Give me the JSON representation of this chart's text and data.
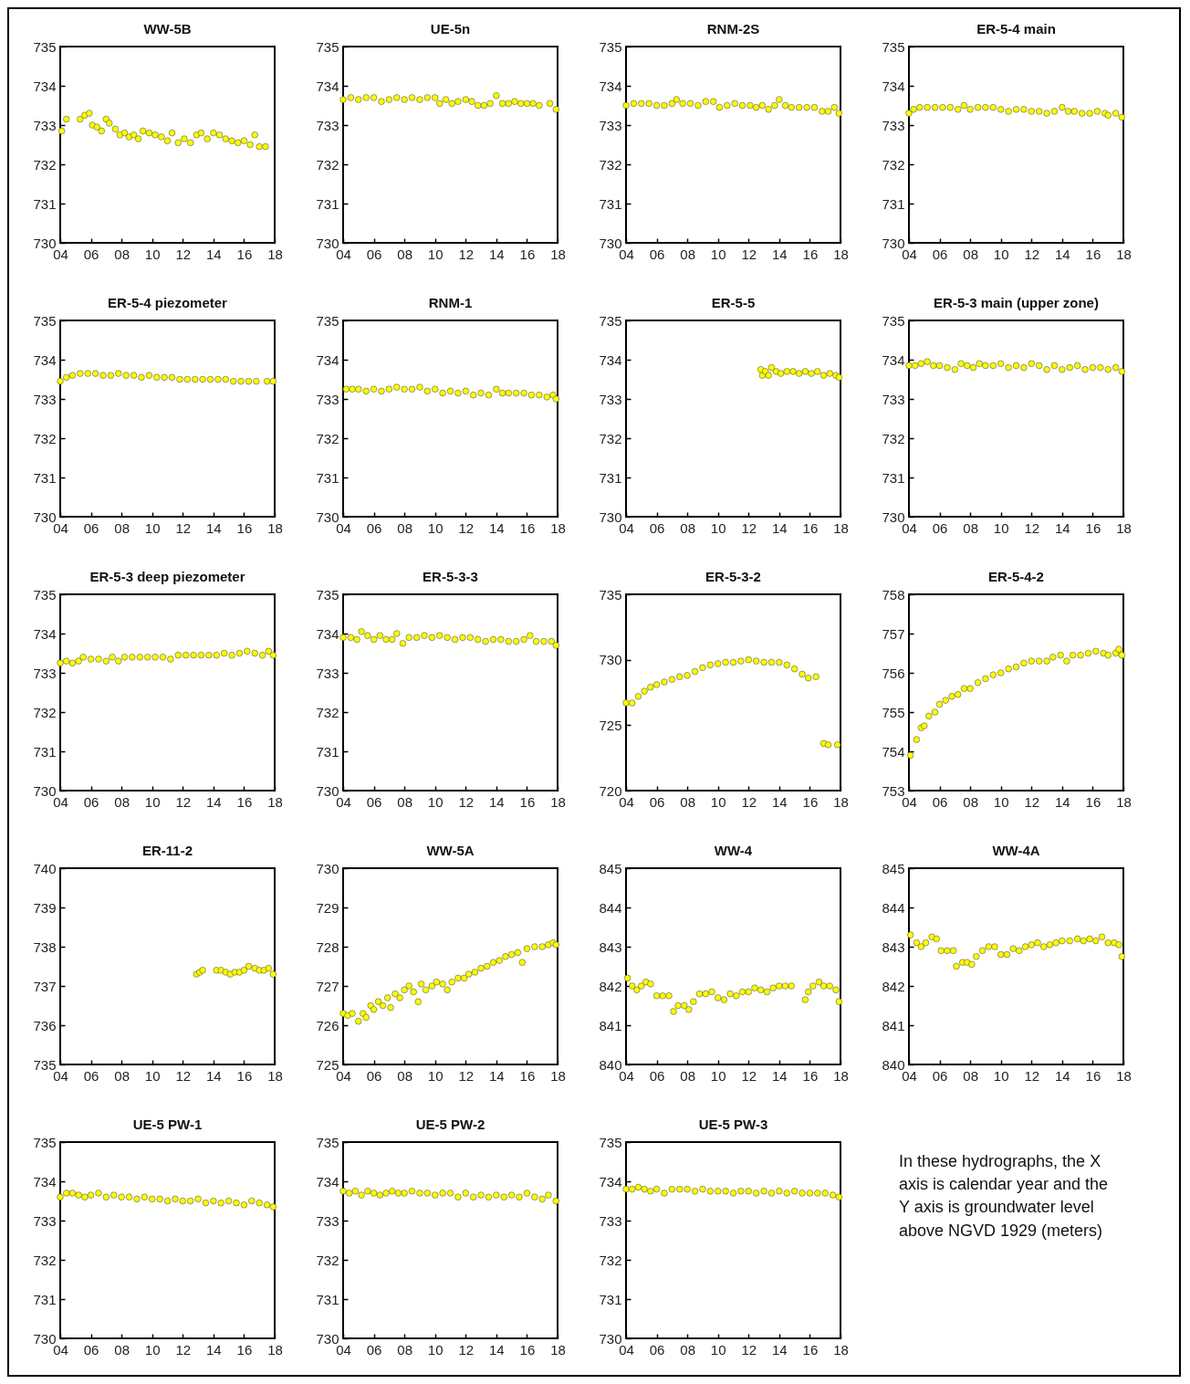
{
  "chart_data": [
    {
      "type": "scatter",
      "title": "WW-5B",
      "marker": "circle",
      "color": "#ffff00",
      "xlim": [
        2004,
        2018
      ],
      "xticks": [
        {
          "value": 2004,
          "label": "04"
        },
        {
          "value": 2006,
          "label": "06"
        },
        {
          "value": 2008,
          "label": "08"
        },
        {
          "value": 2010,
          "label": "10"
        },
        {
          "value": 2012,
          "label": "12"
        },
        {
          "value": 2014,
          "label": "14"
        },
        {
          "value": 2016,
          "label": "16"
        },
        {
          "value": 2018,
          "label": "18"
        }
      ],
      "ylim": [
        730,
        735
      ],
      "yticks": [
        730,
        731,
        732,
        733,
        734,
        735
      ],
      "x": [
        2004.1,
        2004.4,
        2005.3,
        2005.6,
        2005.9,
        2006.1,
        2006.4,
        2006.7,
        2007.0,
        2007.2,
        2007.6,
        2007.9,
        2008.2,
        2008.5,
        2008.8,
        2009.1,
        2009.4,
        2009.8,
        2010.2,
        2010.6,
        2011.0,
        2011.3,
        2011.7,
        2012.1,
        2012.5,
        2012.9,
        2013.2,
        2013.6,
        2014.0,
        2014.4,
        2014.8,
        2015.2,
        2015.6,
        2016.0,
        2016.4,
        2016.7,
        2017.0,
        2017.4
      ],
      "values": [
        732.85,
        733.15,
        733.15,
        733.25,
        733.3,
        733.0,
        732.95,
        732.85,
        733.15,
        733.05,
        732.9,
        732.75,
        732.8,
        732.7,
        732.75,
        732.65,
        732.85,
        732.8,
        732.75,
        732.7,
        732.6,
        732.8,
        732.55,
        732.65,
        732.55,
        732.75,
        732.8,
        732.65,
        732.8,
        732.75,
        732.65,
        732.6,
        732.55,
        732.6,
        732.5,
        732.75,
        732.45,
        732.45
      ]
    },
    {
      "type": "scatter",
      "title": "UE-5n",
      "marker": "circle",
      "color": "#ffff00",
      "xlim": [
        2004,
        2018
      ],
      "xticks": [
        {
          "value": 2004,
          "label": "04"
        },
        {
          "value": 2006,
          "label": "06"
        },
        {
          "value": 2008,
          "label": "08"
        },
        {
          "value": 2010,
          "label": "10"
        },
        {
          "value": 2012,
          "label": "12"
        },
        {
          "value": 2014,
          "label": "14"
        },
        {
          "value": 2016,
          "label": "16"
        },
        {
          "value": 2018,
          "label": "18"
        }
      ],
      "ylim": [
        730,
        735
      ],
      "yticks": [
        730,
        731,
        732,
        733,
        734,
        735
      ],
      "x": [
        2004.0,
        2004.5,
        2005.0,
        2005.5,
        2006.0,
        2006.5,
        2007.0,
        2007.5,
        2008.0,
        2008.5,
        2009.0,
        2009.5,
        2010.0,
        2010.3,
        2010.7,
        2011.1,
        2011.5,
        2012.0,
        2012.4,
        2012.8,
        2013.2,
        2013.6,
        2014.0,
        2014.4,
        2014.8,
        2015.2,
        2015.6,
        2016.0,
        2016.4,
        2016.8,
        2017.5,
        2017.9
      ],
      "values": [
        733.65,
        733.7,
        733.65,
        733.7,
        733.7,
        733.6,
        733.65,
        733.7,
        733.65,
        733.7,
        733.65,
        733.7,
        733.7,
        733.55,
        733.65,
        733.55,
        733.6,
        733.65,
        733.6,
        733.5,
        733.5,
        733.55,
        733.75,
        733.55,
        733.55,
        733.6,
        733.55,
        733.55,
        733.55,
        733.5,
        733.55,
        733.4
      ]
    },
    {
      "type": "scatter",
      "title": "RNM-2S",
      "marker": "circle",
      "color": "#ffff00",
      "xlim": [
        2004,
        2018
      ],
      "xticks": [
        {
          "value": 2004,
          "label": "04"
        },
        {
          "value": 2006,
          "label": "06"
        },
        {
          "value": 2008,
          "label": "08"
        },
        {
          "value": 2010,
          "label": "10"
        },
        {
          "value": 2012,
          "label": "12"
        },
        {
          "value": 2014,
          "label": "14"
        },
        {
          "value": 2016,
          "label": "16"
        },
        {
          "value": 2018,
          "label": "18"
        }
      ],
      "ylim": [
        730,
        735
      ],
      "yticks": [
        730,
        731,
        732,
        733,
        734,
        735
      ],
      "x": [
        2004.0,
        2004.5,
        2005.0,
        2005.5,
        2006.0,
        2006.5,
        2007.0,
        2007.3,
        2007.7,
        2008.2,
        2008.7,
        2009.2,
        2009.7,
        2010.1,
        2010.6,
        2011.1,
        2011.6,
        2012.1,
        2012.5,
        2012.9,
        2013.3,
        2013.7,
        2014.0,
        2014.4,
        2014.8,
        2015.3,
        2015.8,
        2016.3,
        2016.8,
        2017.2,
        2017.6,
        2017.9
      ],
      "values": [
        733.5,
        733.55,
        733.55,
        733.55,
        733.5,
        733.5,
        733.55,
        733.65,
        733.55,
        733.55,
        733.5,
        733.6,
        733.6,
        733.45,
        733.5,
        733.55,
        733.5,
        733.5,
        733.45,
        733.5,
        733.4,
        733.5,
        733.65,
        733.5,
        733.45,
        733.45,
        733.45,
        733.45,
        733.35,
        733.35,
        733.45,
        733.3
      ]
    },
    {
      "type": "scatter",
      "title": "ER-5-4 main",
      "marker": "circle",
      "color": "#ffff00",
      "xlim": [
        2004,
        2018
      ],
      "xticks": [
        {
          "value": 2004,
          "label": "04"
        },
        {
          "value": 2006,
          "label": "06"
        },
        {
          "value": 2008,
          "label": "08"
        },
        {
          "value": 2010,
          "label": "10"
        },
        {
          "value": 2012,
          "label": "12"
        },
        {
          "value": 2014,
          "label": "14"
        },
        {
          "value": 2016,
          "label": "16"
        },
        {
          "value": 2018,
          "label": "18"
        }
      ],
      "ylim": [
        730,
        735
      ],
      "yticks": [
        730,
        731,
        732,
        733,
        734,
        735
      ],
      "x": [
        2004.0,
        2004.3,
        2004.7,
        2005.2,
        2005.7,
        2006.2,
        2006.7,
        2007.2,
        2007.6,
        2008.0,
        2008.5,
        2009.0,
        2009.5,
        2010.0,
        2010.5,
        2011.0,
        2011.5,
        2012.0,
        2012.5,
        2013.0,
        2013.5,
        2014.0,
        2014.4,
        2014.8,
        2015.3,
        2015.8,
        2016.3,
        2016.8,
        2017.0,
        2017.5,
        2017.9
      ],
      "values": [
        733.3,
        733.4,
        733.45,
        733.45,
        733.45,
        733.45,
        733.45,
        733.4,
        733.5,
        733.4,
        733.45,
        733.45,
        733.45,
        733.4,
        733.35,
        733.4,
        733.4,
        733.35,
        733.35,
        733.3,
        733.35,
        733.45,
        733.35,
        733.35,
        733.3,
        733.3,
        733.35,
        733.3,
        733.25,
        733.3,
        733.2
      ]
    },
    {
      "type": "scatter",
      "title": "ER-5-4 piezometer",
      "marker": "circle",
      "color": "#ffff00",
      "xlim": [
        2004,
        2018
      ],
      "xticks": [
        {
          "value": 2004,
          "label": "04"
        },
        {
          "value": 2006,
          "label": "06"
        },
        {
          "value": 2008,
          "label": "08"
        },
        {
          "value": 2010,
          "label": "10"
        },
        {
          "value": 2012,
          "label": "12"
        },
        {
          "value": 2014,
          "label": "14"
        },
        {
          "value": 2016,
          "label": "16"
        },
        {
          "value": 2018,
          "label": "18"
        }
      ],
      "ylim": [
        730,
        735
      ],
      "yticks": [
        730,
        731,
        732,
        733,
        734,
        735
      ],
      "x": [
        2004.0,
        2004.4,
        2004.8,
        2005.3,
        2005.8,
        2006.3,
        2006.8,
        2007.3,
        2007.8,
        2008.3,
        2008.8,
        2009.3,
        2009.8,
        2010.3,
        2010.8,
        2011.3,
        2011.8,
        2012.3,
        2012.8,
        2013.3,
        2013.8,
        2014.3,
        2014.8,
        2015.3,
        2015.8,
        2016.3,
        2016.8,
        2017.5,
        2017.9
      ],
      "values": [
        733.45,
        733.55,
        733.6,
        733.65,
        733.65,
        733.65,
        733.6,
        733.6,
        733.65,
        733.6,
        733.6,
        733.55,
        733.6,
        733.55,
        733.55,
        733.55,
        733.5,
        733.5,
        733.5,
        733.5,
        733.5,
        733.5,
        733.5,
        733.45,
        733.45,
        733.45,
        733.45,
        733.45,
        733.45
      ]
    },
    {
      "type": "scatter",
      "title": "RNM-1",
      "marker": "circle",
      "color": "#ffff00",
      "xlim": [
        2004,
        2018
      ],
      "xticks": [
        {
          "value": 2004,
          "label": "04"
        },
        {
          "value": 2006,
          "label": "06"
        },
        {
          "value": 2008,
          "label": "08"
        },
        {
          "value": 2010,
          "label": "10"
        },
        {
          "value": 2012,
          "label": "12"
        },
        {
          "value": 2014,
          "label": "14"
        },
        {
          "value": 2016,
          "label": "16"
        },
        {
          "value": 2018,
          "label": "18"
        }
      ],
      "ylim": [
        730,
        735
      ],
      "yticks": [
        730,
        731,
        732,
        733,
        734,
        735
      ],
      "x": [
        2004.2,
        2004.6,
        2005.0,
        2005.5,
        2006.0,
        2006.5,
        2007.0,
        2007.5,
        2008.0,
        2008.5,
        2009.0,
        2009.5,
        2010.0,
        2010.5,
        2011.0,
        2011.5,
        2012.0,
        2012.5,
        2013.0,
        2013.5,
        2014.0,
        2014.4,
        2014.8,
        2015.3,
        2015.8,
        2016.3,
        2016.8,
        2017.3,
        2017.7,
        2017.9
      ],
      "values": [
        733.25,
        733.25,
        733.25,
        733.2,
        733.25,
        733.2,
        733.25,
        733.3,
        733.25,
        733.25,
        733.3,
        733.2,
        733.25,
        733.15,
        733.2,
        733.15,
        733.2,
        733.1,
        733.15,
        733.1,
        733.25,
        733.15,
        733.15,
        733.15,
        733.15,
        733.1,
        733.1,
        733.05,
        733.1,
        733.0
      ]
    },
    {
      "type": "scatter",
      "title": "ER-5-5",
      "marker": "circle",
      "color": "#ffff00",
      "xlim": [
        2004,
        2018
      ],
      "xticks": [
        {
          "value": 2004,
          "label": "04"
        },
        {
          "value": 2006,
          "label": "06"
        },
        {
          "value": 2008,
          "label": "08"
        },
        {
          "value": 2010,
          "label": "10"
        },
        {
          "value": 2012,
          "label": "12"
        },
        {
          "value": 2014,
          "label": "14"
        },
        {
          "value": 2016,
          "label": "16"
        },
        {
          "value": 2018,
          "label": "18"
        }
      ],
      "ylim": [
        730,
        735
      ],
      "yticks": [
        730,
        731,
        732,
        733,
        734,
        735
      ],
      "x": [
        2012.8,
        2012.9,
        2013.1,
        2013.3,
        2013.5,
        2013.8,
        2014.1,
        2014.5,
        2014.9,
        2015.3,
        2015.7,
        2016.1,
        2016.5,
        2016.9,
        2017.3,
        2017.7,
        2017.9
      ],
      "values": [
        733.75,
        733.6,
        733.7,
        733.6,
        733.8,
        733.7,
        733.65,
        733.7,
        733.7,
        733.65,
        733.7,
        733.65,
        733.7,
        733.6,
        733.65,
        733.6,
        733.55
      ]
    },
    {
      "type": "scatter",
      "title": "ER-5-3 main (upper zone)",
      "marker": "circle",
      "color": "#ffff00",
      "xlim": [
        2004,
        2018
      ],
      "xticks": [
        {
          "value": 2004,
          "label": "04"
        },
        {
          "value": 2006,
          "label": "06"
        },
        {
          "value": 2008,
          "label": "08"
        },
        {
          "value": 2010,
          "label": "10"
        },
        {
          "value": 2012,
          "label": "12"
        },
        {
          "value": 2014,
          "label": "14"
        },
        {
          "value": 2016,
          "label": "16"
        },
        {
          "value": 2018,
          "label": "18"
        }
      ],
      "ylim": [
        730,
        735
      ],
      "yticks": [
        730,
        731,
        732,
        733,
        734,
        735
      ],
      "x": [
        2004.0,
        2004.4,
        2004.8,
        2005.2,
        2005.6,
        2006.0,
        2006.5,
        2007.0,
        2007.4,
        2007.8,
        2008.2,
        2008.6,
        2009.0,
        2009.5,
        2010.0,
        2010.5,
        2011.0,
        2011.5,
        2012.0,
        2012.5,
        2013.0,
        2013.5,
        2014.0,
        2014.5,
        2015.0,
        2015.5,
        2016.0,
        2016.5,
        2017.0,
        2017.5,
        2017.9
      ],
      "values": [
        733.85,
        733.85,
        733.9,
        733.95,
        733.85,
        733.85,
        733.8,
        733.75,
        733.9,
        733.85,
        733.8,
        733.9,
        733.85,
        733.85,
        733.9,
        733.8,
        733.85,
        733.8,
        733.9,
        733.85,
        733.75,
        733.85,
        733.75,
        733.8,
        733.85,
        733.75,
        733.8,
        733.8,
        733.75,
        733.8,
        733.7
      ]
    },
    {
      "type": "scatter",
      "title": "ER-5-3 deep piezometer",
      "marker": "circle",
      "color": "#ffff00",
      "xlim": [
        2004,
        2018
      ],
      "xticks": [
        {
          "value": 2004,
          "label": "04"
        },
        {
          "value": 2006,
          "label": "06"
        },
        {
          "value": 2008,
          "label": "08"
        },
        {
          "value": 2010,
          "label": "10"
        },
        {
          "value": 2012,
          "label": "12"
        },
        {
          "value": 2014,
          "label": "14"
        },
        {
          "value": 2016,
          "label": "16"
        },
        {
          "value": 2018,
          "label": "18"
        }
      ],
      "ylim": [
        730,
        735
      ],
      "yticks": [
        730,
        731,
        732,
        733,
        734,
        735
      ],
      "x": [
        2004.0,
        2004.4,
        2004.8,
        2005.2,
        2005.5,
        2006.0,
        2006.5,
        2007.0,
        2007.4,
        2007.8,
        2008.2,
        2008.7,
        2009.2,
        2009.7,
        2010.2,
        2010.7,
        2011.2,
        2011.7,
        2012.2,
        2012.7,
        2013.2,
        2013.7,
        2014.2,
        2014.7,
        2015.2,
        2015.7,
        2016.2,
        2016.7,
        2017.2,
        2017.6,
        2017.9
      ],
      "values": [
        733.25,
        733.3,
        733.25,
        733.3,
        733.4,
        733.35,
        733.35,
        733.3,
        733.4,
        733.3,
        733.4,
        733.4,
        733.4,
        733.4,
        733.4,
        733.4,
        733.35,
        733.45,
        733.45,
        733.45,
        733.45,
        733.45,
        733.45,
        733.5,
        733.45,
        733.5,
        733.55,
        733.5,
        733.45,
        733.55,
        733.45
      ]
    },
    {
      "type": "scatter",
      "title": "ER-5-3-3",
      "marker": "circle",
      "color": "#ffff00",
      "xlim": [
        2004,
        2018
      ],
      "xticks": [
        {
          "value": 2004,
          "label": "04"
        },
        {
          "value": 2006,
          "label": "06"
        },
        {
          "value": 2008,
          "label": "08"
        },
        {
          "value": 2010,
          "label": "10"
        },
        {
          "value": 2012,
          "label": "12"
        },
        {
          "value": 2014,
          "label": "14"
        },
        {
          "value": 2016,
          "label": "16"
        },
        {
          "value": 2018,
          "label": "18"
        }
      ],
      "ylim": [
        730,
        735
      ],
      "yticks": [
        730,
        731,
        732,
        733,
        734,
        735
      ],
      "x": [
        2004.0,
        2004.5,
        2004.9,
        2005.2,
        2005.6,
        2006.0,
        2006.4,
        2006.8,
        2007.2,
        2007.5,
        2007.9,
        2008.3,
        2008.8,
        2009.3,
        2009.8,
        2010.3,
        2010.8,
        2011.3,
        2011.8,
        2012.3,
        2012.8,
        2013.3,
        2013.8,
        2014.3,
        2014.8,
        2015.3,
        2015.8,
        2016.2,
        2016.6,
        2017.1,
        2017.6,
        2017.9
      ],
      "values": [
        733.9,
        733.9,
        733.85,
        734.05,
        733.95,
        733.85,
        733.95,
        733.85,
        733.85,
        734.0,
        733.75,
        733.9,
        733.9,
        733.95,
        733.9,
        733.95,
        733.9,
        733.85,
        733.9,
        733.9,
        733.85,
        733.8,
        733.85,
        733.85,
        733.8,
        733.8,
        733.85,
        733.95,
        733.8,
        733.8,
        733.8,
        733.7
      ]
    },
    {
      "type": "scatter",
      "title": "ER-5-3-2",
      "marker": "circle",
      "color": "#ffff00",
      "xlim": [
        2004,
        2018
      ],
      "xticks": [
        {
          "value": 2004,
          "label": "04"
        },
        {
          "value": 2006,
          "label": "06"
        },
        {
          "value": 2008,
          "label": "08"
        },
        {
          "value": 2010,
          "label": "10"
        },
        {
          "value": 2012,
          "label": "12"
        },
        {
          "value": 2014,
          "label": "14"
        },
        {
          "value": 2016,
          "label": "16"
        },
        {
          "value": 2018,
          "label": "18"
        }
      ],
      "ylim": [
        720,
        735
      ],
      "yticks": [
        720,
        725,
        730,
        735
      ],
      "x": [
        2004.0,
        2004.4,
        2004.8,
        2005.2,
        2005.6,
        2006.0,
        2006.5,
        2007.0,
        2007.5,
        2008.0,
        2008.5,
        2009.0,
        2009.5,
        2010.0,
        2010.5,
        2011.0,
        2011.5,
        2012.0,
        2012.5,
        2013.0,
        2013.5,
        2014.0,
        2014.5,
        2015.0,
        2015.5,
        2015.9,
        2016.4,
        2016.9,
        2017.2,
        2017.8
      ],
      "values": [
        726.7,
        726.7,
        727.2,
        727.6,
        727.9,
        728.1,
        728.3,
        728.5,
        728.7,
        728.8,
        729.1,
        729.4,
        729.6,
        729.7,
        729.8,
        729.8,
        729.9,
        730.0,
        729.9,
        729.8,
        729.8,
        729.8,
        729.6,
        729.3,
        728.9,
        728.6,
        728.7,
        723.6,
        723.5,
        723.5
      ]
    },
    {
      "type": "scatter",
      "title": "ER-5-4-2",
      "marker": "circle",
      "color": "#ffff00",
      "xlim": [
        2004,
        2018
      ],
      "xticks": [
        {
          "value": 2004,
          "label": "04"
        },
        {
          "value": 2006,
          "label": "06"
        },
        {
          "value": 2008,
          "label": "08"
        },
        {
          "value": 2010,
          "label": "10"
        },
        {
          "value": 2012,
          "label": "12"
        },
        {
          "value": 2014,
          "label": "14"
        },
        {
          "value": 2016,
          "label": "16"
        },
        {
          "value": 2018,
          "label": "18"
        }
      ],
      "ylim": [
        753,
        758
      ],
      "yticks": [
        753,
        754,
        755,
        756,
        757,
        758
      ],
      "x": [
        2004.1,
        2004.5,
        2004.8,
        2005.0,
        2005.3,
        2005.7,
        2006.0,
        2006.4,
        2006.8,
        2007.2,
        2007.6,
        2008.0,
        2008.5,
        2009.0,
        2009.5,
        2010.0,
        2010.5,
        2011.0,
        2011.5,
        2012.0,
        2012.5,
        2013.0,
        2013.4,
        2013.9,
        2014.3,
        2014.7,
        2015.2,
        2015.7,
        2016.2,
        2016.7,
        2017.0,
        2017.5,
        2017.7,
        2017.9
      ],
      "values": [
        753.9,
        754.3,
        754.6,
        754.65,
        754.9,
        755.0,
        755.2,
        755.3,
        755.4,
        755.45,
        755.6,
        755.6,
        755.75,
        755.85,
        755.95,
        756.0,
        756.1,
        756.15,
        756.25,
        756.3,
        756.3,
        756.3,
        756.4,
        756.45,
        756.3,
        756.45,
        756.45,
        756.5,
        756.55,
        756.5,
        756.45,
        756.5,
        756.6,
        756.45
      ]
    },
    {
      "type": "scatter",
      "title": "ER-11-2",
      "marker": "circle",
      "color": "#ffff00",
      "xlim": [
        2004,
        2018
      ],
      "xticks": [
        {
          "value": 2004,
          "label": "04"
        },
        {
          "value": 2006,
          "label": "06"
        },
        {
          "value": 2008,
          "label": "08"
        },
        {
          "value": 2010,
          "label": "10"
        },
        {
          "value": 2012,
          "label": "12"
        },
        {
          "value": 2014,
          "label": "14"
        },
        {
          "value": 2016,
          "label": "16"
        },
        {
          "value": 2018,
          "label": "18"
        }
      ],
      "ylim": [
        735,
        740
      ],
      "yticks": [
        735,
        736,
        737,
        738,
        739,
        740
      ],
      "x": [
        2012.9,
        2013.1,
        2013.3,
        2014.2,
        2014.5,
        2014.8,
        2015.1,
        2015.4,
        2015.7,
        2016.0,
        2016.3,
        2016.7,
        2017.0,
        2017.3,
        2017.6,
        2017.9
      ],
      "values": [
        737.3,
        737.35,
        737.4,
        737.4,
        737.4,
        737.35,
        737.3,
        737.35,
        737.35,
        737.4,
        737.5,
        737.45,
        737.4,
        737.4,
        737.45,
        737.3
      ]
    },
    {
      "type": "scatter",
      "title": "WW-5A",
      "marker": "circle",
      "color": "#ffff00",
      "xlim": [
        2004,
        2018
      ],
      "xticks": [
        {
          "value": 2004,
          "label": "04"
        },
        {
          "value": 2006,
          "label": "06"
        },
        {
          "value": 2008,
          "label": "08"
        },
        {
          "value": 2010,
          "label": "10"
        },
        {
          "value": 2012,
          "label": "12"
        },
        {
          "value": 2014,
          "label": "14"
        },
        {
          "value": 2016,
          "label": "16"
        },
        {
          "value": 2018,
          "label": "18"
        }
      ],
      "ylim": [
        725,
        730
      ],
      "yticks": [
        725,
        726,
        727,
        728,
        729,
        730
      ],
      "x": [
        2004.0,
        2004.3,
        2004.6,
        2005.0,
        2005.3,
        2005.5,
        2005.8,
        2006.0,
        2006.3,
        2006.6,
        2006.9,
        2007.1,
        2007.4,
        2007.7,
        2008.0,
        2008.3,
        2008.6,
        2008.9,
        2009.1,
        2009.4,
        2009.8,
        2010.1,
        2010.5,
        2010.8,
        2011.1,
        2011.5,
        2011.9,
        2012.2,
        2012.6,
        2013.0,
        2013.4,
        2013.8,
        2014.2,
        2014.6,
        2015.0,
        2015.4,
        2015.7,
        2016.0,
        2016.5,
        2017.0,
        2017.4,
        2017.7,
        2017.9
      ],
      "values": [
        726.3,
        726.25,
        726.3,
        726.1,
        726.3,
        726.2,
        726.5,
        726.4,
        726.6,
        726.5,
        726.7,
        726.45,
        726.8,
        726.7,
        726.9,
        727.0,
        726.85,
        726.6,
        727.05,
        726.9,
        727.0,
        727.1,
        727.05,
        726.9,
        727.1,
        727.2,
        727.2,
        727.3,
        727.35,
        727.45,
        727.5,
        727.6,
        727.65,
        727.75,
        727.8,
        727.85,
        727.6,
        727.95,
        728.0,
        728.0,
        728.05,
        728.1,
        728.05
      ]
    },
    {
      "type": "scatter",
      "title": "WW-4",
      "marker": "circle",
      "color": "#ffff00",
      "xlim": [
        2004,
        2018
      ],
      "xticks": [
        {
          "value": 2004,
          "label": "04"
        },
        {
          "value": 2006,
          "label": "06"
        },
        {
          "value": 2008,
          "label": "08"
        },
        {
          "value": 2010,
          "label": "10"
        },
        {
          "value": 2012,
          "label": "12"
        },
        {
          "value": 2014,
          "label": "14"
        },
        {
          "value": 2016,
          "label": "16"
        },
        {
          "value": 2018,
          "label": "18"
        }
      ],
      "ylim": [
        840,
        845
      ],
      "yticks": [
        840,
        841,
        842,
        843,
        844,
        845
      ],
      "x": [
        2004.1,
        2004.4,
        2004.7,
        2005.0,
        2005.3,
        2005.6,
        2006.0,
        2006.4,
        2006.8,
        2007.1,
        2007.4,
        2007.8,
        2008.1,
        2008.4,
        2008.8,
        2009.2,
        2009.6,
        2010.0,
        2010.4,
        2010.8,
        2011.2,
        2011.6,
        2012.0,
        2012.4,
        2012.8,
        2013.2,
        2013.6,
        2014.0,
        2014.4,
        2014.8,
        2015.7,
        2015.9,
        2016.2,
        2016.6,
        2016.9,
        2017.3,
        2017.7,
        2017.9
      ],
      "values": [
        842.2,
        842.0,
        841.9,
        842.0,
        842.1,
        842.05,
        841.75,
        841.75,
        841.75,
        841.35,
        841.5,
        841.5,
        841.4,
        841.6,
        841.8,
        841.8,
        841.85,
        841.7,
        841.65,
        841.8,
        841.75,
        841.85,
        841.85,
        841.95,
        841.9,
        841.85,
        841.95,
        842.0,
        842.0,
        842.0,
        841.65,
        841.85,
        842.0,
        842.1,
        842.0,
        842.0,
        841.9,
        841.6
      ]
    },
    {
      "type": "scatter",
      "title": "WW-4A",
      "marker": "circle",
      "color": "#ffff00",
      "xlim": [
        2004,
        2018
      ],
      "xticks": [
        {
          "value": 2004,
          "label": "04"
        },
        {
          "value": 2006,
          "label": "06"
        },
        {
          "value": 2008,
          "label": "08"
        },
        {
          "value": 2010,
          "label": "10"
        },
        {
          "value": 2012,
          "label": "12"
        },
        {
          "value": 2014,
          "label": "14"
        },
        {
          "value": 2016,
          "label": "16"
        },
        {
          "value": 2018,
          "label": "18"
        }
      ],
      "ylim": [
        840,
        845
      ],
      "yticks": [
        840,
        841,
        842,
        843,
        844,
        845
      ],
      "x": [
        2004.1,
        2004.5,
        2004.8,
        2005.1,
        2005.5,
        2005.8,
        2006.1,
        2006.5,
        2006.9,
        2007.1,
        2007.5,
        2007.8,
        2008.1,
        2008.4,
        2008.8,
        2009.2,
        2009.6,
        2010.0,
        2010.4,
        2010.8,
        2011.2,
        2011.6,
        2012.0,
        2012.4,
        2012.8,
        2013.2,
        2013.6,
        2014.0,
        2014.5,
        2015.0,
        2015.4,
        2015.8,
        2016.2,
        2016.6,
        2017.0,
        2017.4,
        2017.7,
        2017.9
      ],
      "values": [
        843.3,
        843.1,
        843.0,
        843.1,
        843.25,
        843.2,
        842.9,
        842.9,
        842.9,
        842.5,
        842.6,
        842.6,
        842.55,
        842.75,
        842.9,
        843.0,
        843.0,
        842.8,
        842.8,
        842.95,
        842.9,
        843.0,
        843.05,
        843.1,
        843.0,
        843.05,
        843.1,
        843.15,
        843.15,
        843.2,
        843.15,
        843.2,
        843.15,
        843.25,
        843.1,
        843.1,
        843.05,
        842.75
      ]
    },
    {
      "type": "scatter",
      "title": "UE-5 PW-1",
      "marker": "circle",
      "color": "#ffff00",
      "xlim": [
        2004,
        2018
      ],
      "xticks": [
        {
          "value": 2004,
          "label": "04"
        },
        {
          "value": 2006,
          "label": "06"
        },
        {
          "value": 2008,
          "label": "08"
        },
        {
          "value": 2010,
          "label": "10"
        },
        {
          "value": 2012,
          "label": "12"
        },
        {
          "value": 2014,
          "label": "14"
        },
        {
          "value": 2016,
          "label": "16"
        },
        {
          "value": 2018,
          "label": "18"
        }
      ],
      "ylim": [
        730,
        735
      ],
      "yticks": [
        730,
        731,
        732,
        733,
        734,
        735
      ],
      "x": [
        2004.0,
        2004.4,
        2004.8,
        2005.2,
        2005.6,
        2006.0,
        2006.5,
        2007.0,
        2007.5,
        2008.0,
        2008.5,
        2009.0,
        2009.5,
        2010.0,
        2010.5,
        2011.0,
        2011.5,
        2012.0,
        2012.5,
        2013.0,
        2013.5,
        2014.0,
        2014.5,
        2015.0,
        2015.5,
        2016.0,
        2016.5,
        2017.0,
        2017.5,
        2017.9
      ],
      "values": [
        733.6,
        733.7,
        733.7,
        733.65,
        733.6,
        733.65,
        733.7,
        733.6,
        733.65,
        733.6,
        733.6,
        733.55,
        733.6,
        733.55,
        733.55,
        733.5,
        733.55,
        733.5,
        733.5,
        733.55,
        733.45,
        733.5,
        733.45,
        733.5,
        733.45,
        733.4,
        733.5,
        733.45,
        733.4,
        733.35
      ]
    },
    {
      "type": "scatter",
      "title": "UE-5 PW-2",
      "marker": "circle",
      "color": "#ffff00",
      "xlim": [
        2004,
        2018
      ],
      "xticks": [
        {
          "value": 2004,
          "label": "04"
        },
        {
          "value": 2006,
          "label": "06"
        },
        {
          "value": 2008,
          "label": "08"
        },
        {
          "value": 2010,
          "label": "10"
        },
        {
          "value": 2012,
          "label": "12"
        },
        {
          "value": 2014,
          "label": "14"
        },
        {
          "value": 2016,
          "label": "16"
        },
        {
          "value": 2018,
          "label": "18"
        }
      ],
      "ylim": [
        730,
        735
      ],
      "yticks": [
        730,
        731,
        732,
        733,
        734,
        735
      ],
      "x": [
        2004.0,
        2004.4,
        2004.8,
        2005.2,
        2005.6,
        2006.0,
        2006.4,
        2006.8,
        2007.2,
        2007.6,
        2008.0,
        2008.5,
        2009.0,
        2009.5,
        2010.0,
        2010.5,
        2011.0,
        2011.5,
        2012.0,
        2012.5,
        2013.0,
        2013.5,
        2014.0,
        2014.5,
        2015.0,
        2015.5,
        2016.0,
        2016.5,
        2017.0,
        2017.4,
        2017.9
      ],
      "values": [
        733.75,
        733.7,
        733.75,
        733.65,
        733.75,
        733.7,
        733.65,
        733.7,
        733.75,
        733.7,
        733.7,
        733.75,
        733.7,
        733.7,
        733.65,
        733.7,
        733.7,
        733.6,
        733.7,
        733.6,
        733.65,
        733.6,
        733.65,
        733.6,
        733.65,
        733.6,
        733.7,
        733.6,
        733.55,
        733.65,
        733.5
      ]
    },
    {
      "type": "scatter",
      "title": "UE-5 PW-3",
      "marker": "circle",
      "color": "#ffff00",
      "xlim": [
        2004,
        2018
      ],
      "xticks": [
        {
          "value": 2004,
          "label": "04"
        },
        {
          "value": 2006,
          "label": "06"
        },
        {
          "value": 2008,
          "label": "08"
        },
        {
          "value": 2010,
          "label": "10"
        },
        {
          "value": 2012,
          "label": "12"
        },
        {
          "value": 2014,
          "label": "14"
        },
        {
          "value": 2016,
          "label": "16"
        },
        {
          "value": 2018,
          "label": "18"
        }
      ],
      "ylim": [
        730,
        735
      ],
      "yticks": [
        730,
        731,
        732,
        733,
        734,
        735
      ],
      "x": [
        2004.0,
        2004.4,
        2004.8,
        2005.2,
        2005.6,
        2006.0,
        2006.5,
        2007.0,
        2007.5,
        2008.0,
        2008.5,
        2009.0,
        2009.5,
        2010.0,
        2010.5,
        2011.0,
        2011.5,
        2012.0,
        2012.5,
        2013.0,
        2013.5,
        2014.0,
        2014.5,
        2015.0,
        2015.5,
        2016.0,
        2016.5,
        2017.0,
        2017.5,
        2017.9
      ],
      "values": [
        733.8,
        733.8,
        733.85,
        733.8,
        733.75,
        733.8,
        733.7,
        733.8,
        733.8,
        733.8,
        733.75,
        733.8,
        733.75,
        733.75,
        733.75,
        733.7,
        733.75,
        733.75,
        733.7,
        733.75,
        733.7,
        733.75,
        733.7,
        733.75,
        733.7,
        733.7,
        733.7,
        733.7,
        733.65,
        733.6
      ]
    },
    {
      "type": "other",
      "annotations": [
        "In these hydrographs, the X axis is calendar year and the Y axis is groundwater level above NGVD 1929 (meters)"
      ]
    }
  ]
}
